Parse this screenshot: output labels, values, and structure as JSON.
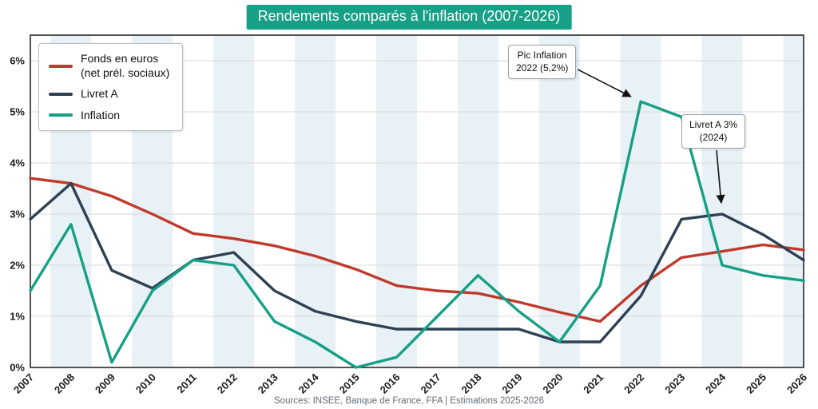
{
  "title": "Rendements comparés à l'inflation (2007-2026)",
  "footer": "Sources: INSEE, Banque de France, FFA | Estimations 2025-2026",
  "colors": {
    "title_bg": "#16a085",
    "fonds": "#c0392b",
    "livret": "#2e4053",
    "inflation": "#16a085",
    "band": "#e8f1f6",
    "grid": "#d9d9d9",
    "frame": "#1a1a1a"
  },
  "legend": {
    "items": [
      {
        "label": "Fonds en euros\n(net prél. sociaux)"
      },
      {
        "label": "Livret A"
      },
      {
        "label": "Inflation"
      }
    ]
  },
  "annotations": [
    {
      "line1": "Pic Inflation",
      "line2": "2022 (5,2%)",
      "target_year": 2022,
      "target_value": 5.2
    },
    {
      "line1": "Livret A 3%",
      "line2": "(2024)",
      "target_year": 2024,
      "target_value": 3.0
    }
  ],
  "chart_data": {
    "type": "line",
    "title": "Rendements comparés à l'inflation (2007-2026)",
    "xlabel": "",
    "ylabel": "",
    "x": [
      2007,
      2008,
      2009,
      2010,
      2011,
      2012,
      2013,
      2014,
      2015,
      2016,
      2017,
      2018,
      2019,
      2020,
      2021,
      2022,
      2023,
      2024,
      2025,
      2026
    ],
    "ylim": [
      0,
      6.5
    ],
    "yticks": [
      0,
      1,
      2,
      3,
      4,
      5,
      6
    ],
    "ytick_labels": [
      "0%",
      "1%",
      "2%",
      "3%",
      "4%",
      "5%",
      "6%"
    ],
    "grid": "horizontal",
    "legend_position": "upper-left",
    "series": [
      {
        "name": "Fonds en euros (net prél. sociaux)",
        "color": "#c0392b",
        "values": [
          3.7,
          3.6,
          3.35,
          3.0,
          2.62,
          2.52,
          2.38,
          2.18,
          1.92,
          1.6,
          1.5,
          1.45,
          1.28,
          1.08,
          0.9,
          1.6,
          2.15,
          2.27,
          2.4,
          2.3
        ]
      },
      {
        "name": "Livret A",
        "color": "#2e4053",
        "values": [
          2.9,
          3.6,
          1.9,
          1.55,
          2.1,
          2.25,
          1.5,
          1.1,
          0.9,
          0.75,
          0.75,
          0.75,
          0.75,
          0.5,
          0.5,
          1.4,
          2.9,
          3.0,
          2.6,
          2.1
        ]
      },
      {
        "name": "Inflation",
        "color": "#16a085",
        "values": [
          1.5,
          2.8,
          0.1,
          1.5,
          2.1,
          2.0,
          0.9,
          0.5,
          0.0,
          0.2,
          1.0,
          1.8,
          1.1,
          0.5,
          1.6,
          5.2,
          4.9,
          2.0,
          1.8,
          1.7
        ]
      }
    ]
  }
}
